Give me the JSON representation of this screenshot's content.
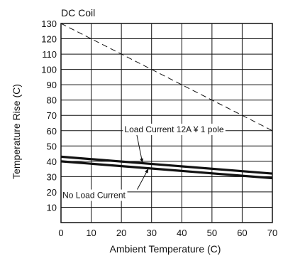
{
  "chart_data": {
    "type": "line",
    "title": "DC Coil",
    "xlabel": "Ambient Temperature (C)",
    "ylabel": "Temperature Rise (C)",
    "xlim": [
      0,
      70
    ],
    "ylim": [
      0,
      130
    ],
    "x_ticks": [
      0,
      10,
      20,
      30,
      40,
      50,
      60,
      70
    ],
    "y_ticks": [
      10,
      20,
      30,
      40,
      50,
      60,
      70,
      80,
      90,
      100,
      110,
      120,
      130
    ],
    "grid": true,
    "series": [
      {
        "x": [
          0,
          70
        ],
        "y": [
          130,
          60
        ],
        "style": "dashed",
        "color": "#111111"
      },
      {
        "name": "Load Current 12A ¥ 1 pole",
        "x": [
          0,
          70
        ],
        "y": [
          43,
          32
        ],
        "style": "solid",
        "color": "#111111"
      },
      {
        "name": "No Load Current",
        "x": [
          0,
          70
        ],
        "y": [
          40,
          29
        ],
        "style": "solid",
        "color": "#111111"
      }
    ],
    "annotations": [
      {
        "text": "Load Current 12A ¥ 1 pole",
        "target_series": 1,
        "target_x": 27,
        "label_x": 21,
        "label_y": 59
      },
      {
        "text": "No Load Current",
        "target_series": 2,
        "target_x": 29,
        "label_x": 0.5,
        "label_y": 16
      }
    ]
  }
}
